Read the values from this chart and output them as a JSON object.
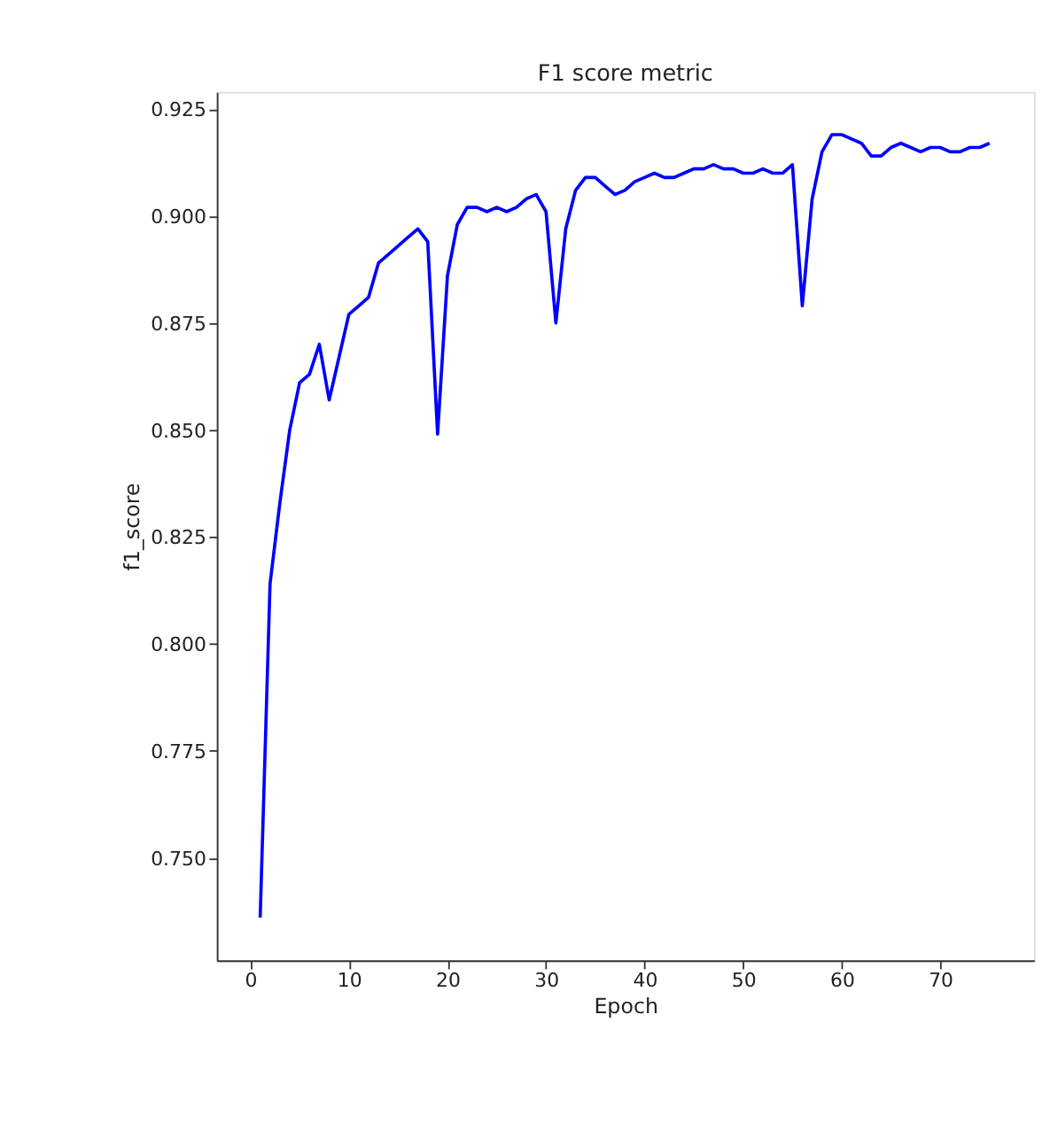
{
  "chart_data": {
    "type": "line",
    "title": "F1 score metric",
    "xlabel": "Epoch",
    "ylabel": "f1_score",
    "x": [
      1,
      2,
      3,
      4,
      5,
      6,
      7,
      8,
      9,
      10,
      11,
      12,
      13,
      14,
      15,
      16,
      17,
      18,
      19,
      20,
      21,
      22,
      23,
      24,
      25,
      26,
      27,
      28,
      29,
      30,
      31,
      32,
      33,
      34,
      35,
      36,
      37,
      38,
      39,
      40,
      41,
      42,
      43,
      44,
      45,
      46,
      47,
      48,
      49,
      50,
      51,
      52,
      53,
      54,
      55,
      56,
      57,
      58,
      59,
      60,
      61,
      62,
      63,
      64,
      65,
      66,
      67,
      68,
      69,
      70,
      71,
      72,
      73,
      74,
      75
    ],
    "series": [
      {
        "color": "#0000ff",
        "values": [
          0.736,
          0.814,
          0.833,
          0.85,
          0.861,
          0.863,
          0.87,
          0.857,
          0.867,
          0.877,
          0.879,
          0.881,
          0.889,
          0.891,
          0.893,
          0.895,
          0.897,
          0.894,
          0.849,
          0.886,
          0.898,
          0.902,
          0.902,
          0.901,
          0.902,
          0.901,
          0.902,
          0.904,
          0.905,
          0.901,
          0.875,
          0.897,
          0.906,
          0.909,
          0.909,
          0.907,
          0.905,
          0.906,
          0.908,
          0.909,
          0.91,
          0.909,
          0.909,
          0.91,
          0.911,
          0.911,
          0.912,
          0.911,
          0.911,
          0.91,
          0.91,
          0.911,
          0.91,
          0.91,
          0.912,
          0.879,
          0.904,
          0.915,
          0.919,
          0.919,
          0.918,
          0.917,
          0.914,
          0.914,
          0.916,
          0.917,
          0.916,
          0.915,
          0.916,
          0.916,
          0.915,
          0.915,
          0.916,
          0.916,
          0.917
        ]
      }
    ],
    "xlim": [
      -3.4,
      79.5
    ],
    "xticks": [
      0,
      10,
      20,
      30,
      40,
      50,
      60,
      70
    ],
    "ylim": [
      0.726,
      0.929
    ],
    "yticks": [
      {
        "value": 0.75,
        "label": "0.750"
      },
      {
        "value": 0.775,
        "label": "0.775"
      },
      {
        "value": 0.8,
        "label": "0.800"
      },
      {
        "value": 0.825,
        "label": "0.825"
      },
      {
        "value": 0.85,
        "label": "0.850"
      },
      {
        "value": 0.875,
        "label": "0.875"
      },
      {
        "value": 0.9,
        "label": "0.900"
      },
      {
        "value": 0.925,
        "label": "0.925"
      }
    ],
    "grid": false,
    "legend": false,
    "marker": "none",
    "line_style": "solid"
  }
}
